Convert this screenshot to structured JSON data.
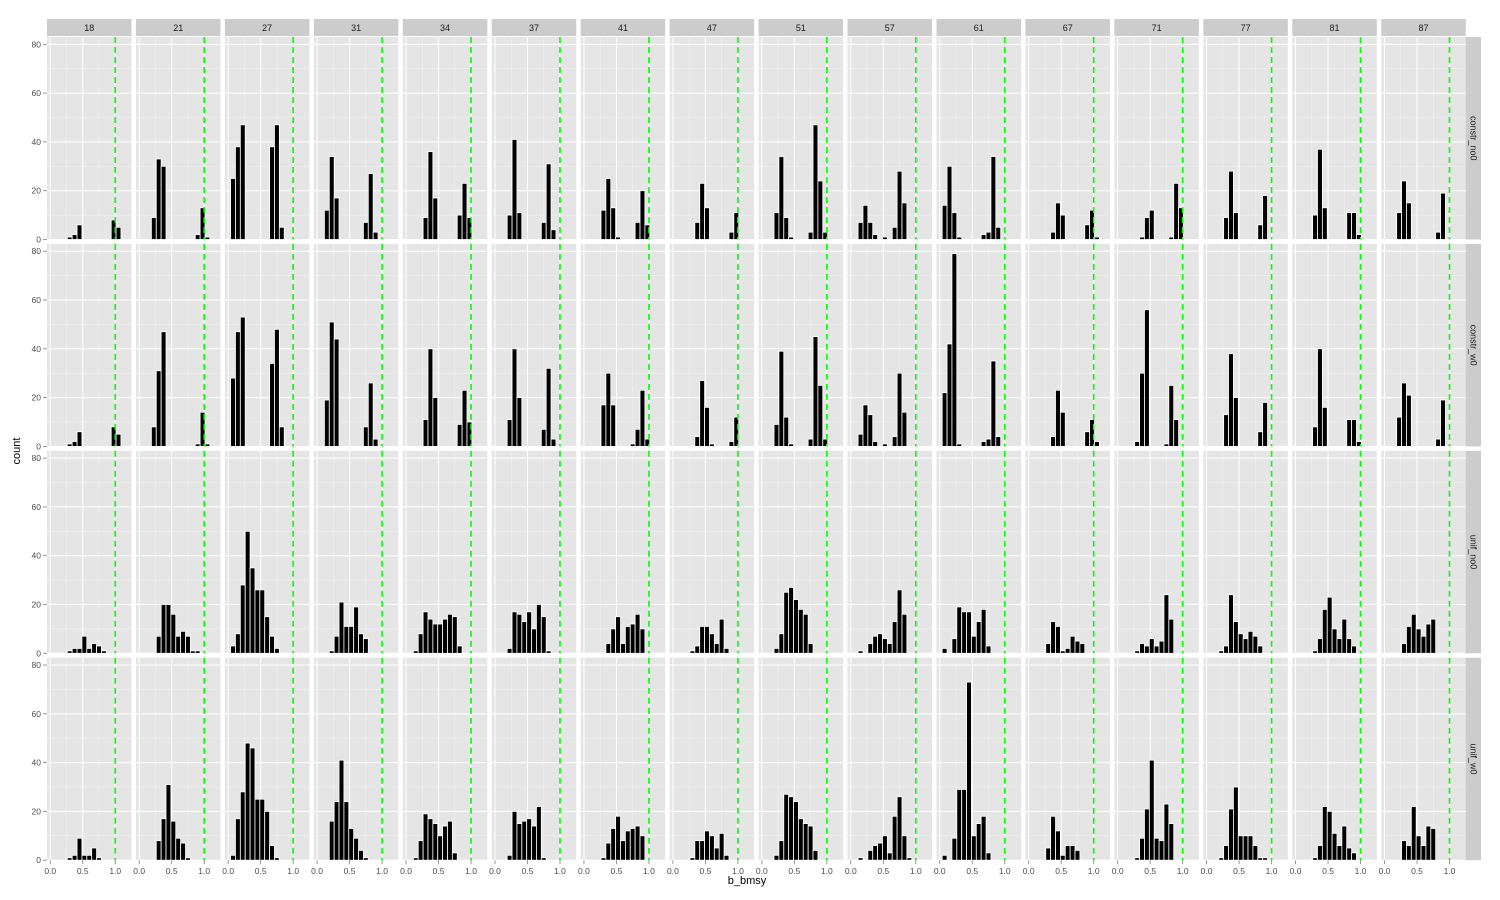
{
  "chart_data": {
    "type": "bar",
    "xlabel": "b_bmsy",
    "ylabel": "count",
    "ylim": [
      0,
      83
    ],
    "xlim": [
      -0.05,
      1.25
    ],
    "y_ticks": [
      "0",
      "20",
      "40",
      "60",
      "80"
    ],
    "y_tick_values": [
      0,
      20,
      40,
      60,
      80
    ],
    "x_ticks": [
      "0.0",
      "0.5",
      "1.0"
    ],
    "x_tick_values": [
      0,
      0.5,
      1.0
    ],
    "bin_width": 0.075,
    "bin_centers": [
      0.0,
      0.075,
      0.15,
      0.225,
      0.3,
      0.375,
      0.45,
      0.525,
      0.6,
      0.675,
      0.75,
      0.825,
      0.9,
      0.975,
      1.05
    ],
    "reference_line": {
      "x": 1.0,
      "color": "#00ff00",
      "style": "dashed"
    },
    "grid": true,
    "colors": {
      "panel_bg": "#e5e5e5",
      "strip_bg": "#cccccc",
      "bar_fill": "#000000",
      "bar_outline": "#ffffff",
      "grid": "#f2f2f2"
    },
    "columns": [
      "18",
      "21",
      "27",
      "31",
      "34",
      "37",
      "41",
      "47",
      "51",
      "57",
      "61",
      "67",
      "71",
      "77",
      "81",
      "87"
    ],
    "rows": [
      "constr_no0",
      "constr_w0",
      "unif_no0",
      "unif_w0"
    ],
    "panels": {
      "constr_no0": [
        [
          0,
          0,
          0,
          0,
          1,
          2,
          6,
          0,
          0,
          0,
          0,
          0,
          0,
          8,
          5
        ],
        [
          0,
          0,
          0,
          9,
          33,
          30,
          0,
          0,
          0,
          0,
          0,
          0,
          2,
          13,
          1
        ],
        [
          0,
          25,
          38,
          47,
          0,
          0,
          0,
          0,
          0,
          38,
          47,
          5,
          0,
          0,
          0
        ],
        [
          0,
          0,
          12,
          34,
          17,
          0,
          0,
          0,
          0,
          0,
          7,
          27,
          3,
          0,
          0
        ],
        [
          0,
          0,
          0,
          0,
          9,
          36,
          17,
          0,
          0,
          0,
          0,
          10,
          23,
          9,
          0
        ],
        [
          0,
          0,
          0,
          10,
          41,
          11,
          0,
          0,
          0,
          0,
          7,
          31,
          4,
          0,
          0
        ],
        [
          0,
          0,
          0,
          0,
          12,
          25,
          13,
          1,
          0,
          0,
          0,
          7,
          20,
          6,
          0
        ],
        [
          0,
          0,
          0,
          0,
          0,
          7,
          23,
          13,
          0,
          0,
          0,
          0,
          3,
          11,
          0
        ],
        [
          0,
          0,
          0,
          11,
          34,
          9,
          1,
          0,
          0,
          0,
          3,
          47,
          24,
          3,
          0
        ],
        [
          0,
          0,
          7,
          14,
          7,
          2,
          0,
          1,
          0,
          5,
          28,
          15,
          0,
          0,
          0
        ],
        [
          0,
          14,
          30,
          11,
          1,
          0,
          0,
          0,
          0,
          2,
          3,
          34,
          5,
          0,
          0
        ],
        [
          0,
          0,
          0,
          0,
          0,
          3,
          15,
          10,
          0,
          0,
          0,
          0,
          6,
          12,
          1
        ],
        [
          0,
          0,
          0,
          0,
          0,
          1,
          9,
          12,
          0,
          0,
          0,
          1,
          23,
          13,
          0
        ],
        [
          0,
          0,
          0,
          0,
          9,
          28,
          11,
          0,
          0,
          0,
          0,
          6,
          18,
          0,
          0
        ],
        [
          0,
          0,
          0,
          0,
          10,
          37,
          13,
          0,
          0,
          0,
          0,
          11,
          11,
          2,
          0
        ],
        [
          0,
          0,
          0,
          11,
          24,
          15,
          0,
          0,
          0,
          0,
          0,
          3,
          19,
          0,
          0
        ]
      ],
      "constr_w0": [
        [
          0,
          0,
          0,
          0,
          1,
          2,
          6,
          0,
          0,
          0,
          0,
          0,
          0,
          8,
          5
        ],
        [
          0,
          0,
          0,
          8,
          31,
          47,
          0,
          0,
          0,
          0,
          0,
          0,
          1,
          14,
          1
        ],
        [
          0,
          28,
          47,
          53,
          0,
          0,
          0,
          0,
          0,
          34,
          48,
          8,
          0,
          0,
          0
        ],
        [
          0,
          0,
          19,
          51,
          44,
          0,
          0,
          0,
          0,
          0,
          8,
          26,
          3,
          0,
          0
        ],
        [
          0,
          0,
          0,
          0,
          11,
          40,
          20,
          0,
          0,
          0,
          0,
          9,
          23,
          10,
          0
        ],
        [
          0,
          0,
          0,
          11,
          40,
          20,
          0,
          0,
          0,
          0,
          7,
          32,
          3,
          0,
          0
        ],
        [
          0,
          0,
          0,
          0,
          17,
          30,
          17,
          0,
          0,
          0,
          1,
          7,
          23,
          3,
          0
        ],
        [
          0,
          0,
          0,
          0,
          0,
          4,
          27,
          16,
          1,
          0,
          0,
          0,
          2,
          12,
          0
        ],
        [
          0,
          0,
          0,
          9,
          39,
          12,
          1,
          0,
          0,
          0,
          3,
          45,
          25,
          3,
          0
        ],
        [
          0,
          0,
          5,
          17,
          13,
          2,
          0,
          1,
          0,
          4,
          30,
          14,
          0,
          0,
          0
        ],
        [
          0,
          22,
          42,
          79,
          1,
          0,
          0,
          0,
          0,
          2,
          3,
          35,
          4,
          0,
          0
        ],
        [
          0,
          0,
          0,
          0,
          0,
          4,
          23,
          14,
          0,
          0,
          0,
          0,
          6,
          11,
          2
        ],
        [
          0,
          0,
          0,
          0,
          2,
          30,
          56,
          0,
          0,
          0,
          1,
          25,
          11,
          0,
          0
        ],
        [
          0,
          0,
          0,
          0,
          13,
          38,
          20,
          0,
          0,
          0,
          0,
          6,
          18,
          0,
          0
        ],
        [
          0,
          0,
          0,
          0,
          8,
          40,
          16,
          0,
          0,
          0,
          0,
          11,
          11,
          2,
          0
        ],
        [
          0,
          0,
          0,
          12,
          26,
          21,
          0,
          0,
          0,
          0,
          0,
          3,
          19,
          0,
          0
        ]
      ],
      "unif_no0": [
        [
          0,
          0,
          0,
          0,
          1,
          2,
          2,
          7,
          2,
          4,
          3,
          1,
          0,
          0,
          0
        ],
        [
          0,
          0,
          0,
          0,
          7,
          20,
          20,
          16,
          7,
          9,
          7,
          1,
          1,
          0,
          0
        ],
        [
          0,
          3,
          8,
          28,
          50,
          35,
          26,
          26,
          15,
          7,
          2,
          0,
          0,
          0,
          0
        ],
        [
          0,
          0,
          0,
          1,
          7,
          21,
          11,
          11,
          19,
          8,
          6,
          0,
          0,
          0,
          0
        ],
        [
          0,
          0,
          1,
          8,
          17,
          14,
          12,
          12,
          14,
          16,
          15,
          3,
          0,
          0,
          0
        ],
        [
          0,
          0,
          0,
          2,
          17,
          16,
          13,
          17,
          10,
          20,
          15,
          1,
          0,
          0,
          0
        ],
        [
          0,
          0,
          0,
          0,
          0,
          4,
          10,
          15,
          4,
          11,
          12,
          16,
          10,
          0,
          0
        ],
        [
          0,
          0,
          0,
          0,
          1,
          3,
          11,
          11,
          8,
          4,
          14,
          2,
          0,
          0,
          0
        ],
        [
          0,
          0,
          0,
          2,
          8,
          25,
          27,
          22,
          18,
          16,
          4,
          0,
          0,
          0,
          0
        ],
        [
          0,
          0,
          1,
          0,
          4,
          7,
          8,
          6,
          4,
          13,
          26,
          16,
          0,
          0,
          0
        ],
        [
          0,
          2,
          0,
          6,
          19,
          17,
          17,
          7,
          13,
          18,
          3,
          0,
          0,
          0,
          0
        ],
        [
          0,
          0,
          0,
          0,
          4,
          13,
          11,
          1,
          2,
          7,
          5,
          4,
          0,
          0,
          0
        ],
        [
          0,
          0,
          0,
          0,
          1,
          4,
          3,
          6,
          3,
          5,
          24,
          14,
          0,
          0,
          0
        ],
        [
          0,
          0,
          0,
          1,
          3,
          24,
          13,
          8,
          6,
          9,
          7,
          3,
          0,
          0,
          0
        ],
        [
          0,
          0,
          0,
          0,
          1,
          6,
          18,
          23,
          10,
          6,
          14,
          6,
          3,
          0,
          0
        ],
        [
          0,
          0,
          0,
          0,
          4,
          11,
          16,
          10,
          7,
          12,
          14,
          0,
          0,
          0,
          0
        ]
      ],
      "unif_w0": [
        [
          0,
          0,
          0,
          0,
          1,
          2,
          9,
          2,
          2,
          5,
          1,
          0,
          0,
          0,
          0
        ],
        [
          0,
          0,
          0,
          0,
          8,
          17,
          31,
          16,
          9,
          7,
          1,
          0,
          0,
          0,
          0
        ],
        [
          0,
          2,
          17,
          28,
          48,
          46,
          25,
          25,
          20,
          6,
          1,
          0,
          0,
          0,
          0
        ],
        [
          0,
          0,
          0,
          16,
          24,
          41,
          24,
          13,
          9,
          4,
          1,
          0,
          0,
          0,
          0
        ],
        [
          0,
          0,
          1,
          8,
          19,
          17,
          15,
          10,
          14,
          16,
          3,
          0,
          0,
          0,
          0
        ],
        [
          0,
          0,
          0,
          2,
          20,
          15,
          16,
          17,
          14,
          22,
          1,
          0,
          0,
          0,
          0
        ],
        [
          0,
          0,
          0,
          0,
          1,
          7,
          13,
          18,
          8,
          12,
          13,
          14,
          10,
          0,
          0
        ],
        [
          0,
          0,
          0,
          0,
          1,
          8,
          8,
          12,
          10,
          5,
          11,
          2,
          0,
          0,
          0
        ],
        [
          0,
          0,
          0,
          2,
          8,
          27,
          26,
          24,
          17,
          15,
          14,
          4,
          0,
          0,
          0
        ],
        [
          0,
          0,
          1,
          0,
          4,
          6,
          7,
          10,
          3,
          18,
          26,
          10,
          1,
          0,
          0
        ],
        [
          0,
          2,
          0,
          9,
          29,
          29,
          73,
          10,
          15,
          18,
          3,
          0,
          0,
          0,
          0
        ],
        [
          0,
          0,
          0,
          0,
          5,
          18,
          12,
          2,
          6,
          6,
          4,
          0,
          0,
          0,
          0
        ],
        [
          0,
          0,
          0,
          0,
          1,
          9,
          21,
          41,
          9,
          8,
          23,
          15,
          0,
          0,
          0
        ],
        [
          0,
          0,
          0,
          1,
          6,
          21,
          30,
          10,
          10,
          10,
          6,
          1,
          1,
          0,
          0
        ],
        [
          0,
          0,
          0,
          0,
          1,
          6,
          22,
          20,
          11,
          6,
          14,
          5,
          3,
          0,
          0
        ],
        [
          0,
          0,
          0,
          0,
          8,
          6,
          22,
          10,
          6,
          14,
          13,
          0,
          0,
          0,
          0
        ]
      ]
    }
  }
}
